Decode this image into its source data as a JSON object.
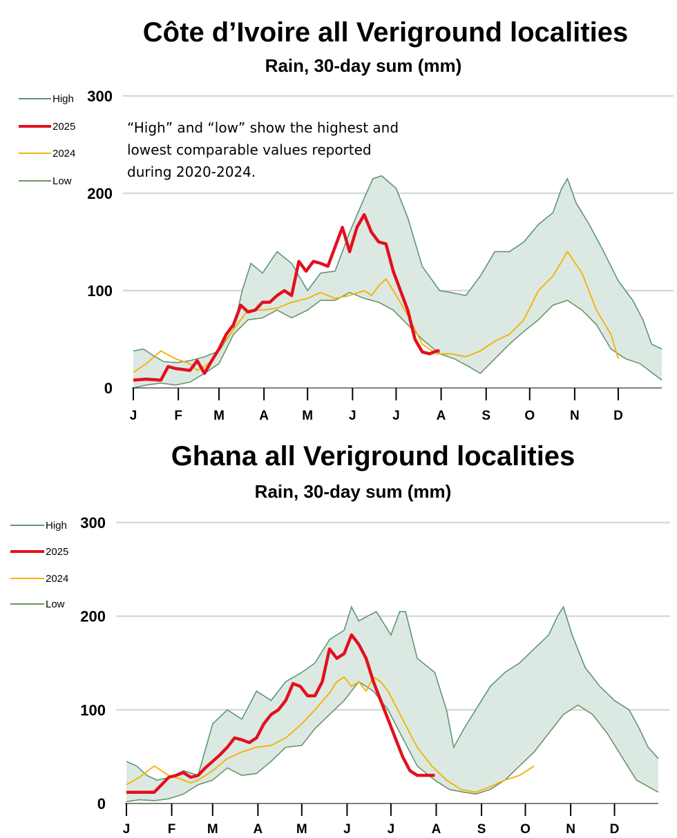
{
  "colors": {
    "band_fill": "#dce9e3",
    "band_line": "#5e9479",
    "low_line": "#6b9363",
    "series_2025": "#e3101d",
    "series_2024": "#f2b40e",
    "grid": "#d9d9d9",
    "axis": "#000000"
  },
  "chart_data": [
    {
      "type": "line",
      "title": "Côte d’Ivoire all Veriground localities",
      "subtitle": "Rain, 30-day sum (mm)",
      "note_lines": [
        "“High” and “low” show the highest and",
        "lowest comparable values reported",
        "during 2020-2024."
      ],
      "legend": [
        "High",
        "2025",
        "2024",
        "Low"
      ],
      "ylim": [
        0,
        300
      ],
      "yticks": [
        "0",
        "100",
        "200",
        "300"
      ],
      "month_labels": [
        "J",
        "F",
        "M",
        "A",
        "M",
        "J",
        "J",
        "A",
        "S",
        "O",
        "N",
        "D"
      ],
      "x_units": "day of year",
      "series": [
        {
          "name": "High",
          "x": [
            1,
            8,
            15,
            22,
            31,
            40,
            50,
            60,
            70,
            76,
            82,
            90,
            100,
            110,
            121,
            130,
            140,
            150,
            160,
            166,
            172,
            182,
            190,
            200,
            212,
            220,
            230,
            240,
            250,
            260,
            270,
            280,
            290,
            296,
            300,
            306,
            315,
            325,
            335,
            345,
            352,
            358,
            365
          ],
          "values": [
            38,
            40,
            33,
            27,
            26,
            28,
            32,
            38,
            60,
            100,
            128,
            118,
            140,
            128,
            100,
            118,
            120,
            160,
            195,
            215,
            218,
            205,
            175,
            125,
            100,
            98,
            95,
            115,
            140,
            140,
            150,
            168,
            180,
            205,
            215,
            190,
            168,
            140,
            110,
            90,
            70,
            45,
            40
          ]
        },
        {
          "name": "Low",
          "x": [
            1,
            10,
            20,
            30,
            40,
            50,
            60,
            70,
            80,
            90,
            100,
            110,
            121,
            130,
            140,
            150,
            160,
            170,
            180,
            190,
            200,
            212,
            222,
            232,
            240,
            250,
            260,
            270,
            280,
            290,
            300,
            310,
            320,
            330,
            340,
            350,
            365
          ],
          "values": [
            0,
            3,
            5,
            3,
            6,
            15,
            25,
            55,
            70,
            72,
            80,
            72,
            80,
            90,
            90,
            98,
            92,
            88,
            80,
            65,
            50,
            35,
            30,
            22,
            15,
            30,
            45,
            58,
            70,
            85,
            90,
            80,
            65,
            40,
            30,
            25,
            8
          ]
        },
        {
          "name": "2025",
          "x": [
            1,
            10,
            20,
            25,
            30,
            40,
            45,
            50,
            55,
            60,
            65,
            70,
            75,
            80,
            85,
            90,
            95,
            100,
            105,
            110,
            115,
            120,
            125,
            130,
            135,
            140,
            145,
            150,
            155,
            160,
            165,
            170,
            175,
            180,
            185,
            190,
            195,
            200,
            205,
            210,
            212
          ],
          "values": [
            8,
            9,
            8,
            22,
            20,
            18,
            28,
            15,
            28,
            40,
            55,
            65,
            85,
            78,
            80,
            88,
            88,
            95,
            100,
            95,
            130,
            120,
            130,
            128,
            125,
            145,
            165,
            140,
            165,
            178,
            160,
            150,
            148,
            120,
            100,
            80,
            50,
            37,
            35,
            38,
            38
          ]
        },
        {
          "name": "2024",
          "x": [
            1,
            10,
            20,
            30,
            40,
            45,
            50,
            55,
            60,
            70,
            80,
            90,
            100,
            110,
            121,
            130,
            140,
            150,
            160,
            165,
            170,
            175,
            180,
            190,
            200,
            210,
            220,
            230,
            240,
            250,
            260,
            270,
            280,
            290,
            300,
            310,
            320,
            330,
            335
          ],
          "values": [
            16,
            25,
            38,
            30,
            25,
            18,
            22,
            28,
            40,
            60,
            80,
            80,
            82,
            88,
            92,
            98,
            92,
            95,
            100,
            95,
            105,
            112,
            100,
            75,
            45,
            35,
            35,
            32,
            38,
            48,
            55,
            70,
            100,
            115,
            140,
            118,
            80,
            55,
            30
          ]
        }
      ]
    },
    {
      "type": "line",
      "title": "Ghana all Veriground localities",
      "subtitle": "Rain, 30-day sum (mm)",
      "legend": [
        "High",
        "2025",
        "2024",
        "Low"
      ],
      "ylim": [
        0,
        300
      ],
      "yticks": [
        "0",
        "100",
        "200",
        "300"
      ],
      "month_labels": [
        "J",
        "F",
        "M",
        "A",
        "M",
        "J",
        "J",
        "A",
        "S",
        "O",
        "N",
        "D"
      ],
      "x_units": "day of year",
      "series": [
        {
          "name": "High",
          "x": [
            1,
            8,
            15,
            22,
            31,
            40,
            50,
            60,
            70,
            80,
            90,
            100,
            110,
            121,
            130,
            140,
            150,
            155,
            160,
            166,
            172,
            182,
            188,
            192,
            200,
            212,
            220,
            225,
            232,
            240,
            250,
            260,
            270,
            280,
            290,
            296,
            300,
            306,
            315,
            325,
            335,
            345,
            352,
            358,
            365
          ],
          "values": [
            45,
            40,
            30,
            25,
            28,
            35,
            30,
            85,
            100,
            90,
            120,
            110,
            130,
            140,
            150,
            175,
            185,
            210,
            195,
            200,
            205,
            180,
            205,
            205,
            155,
            140,
            100,
            60,
            80,
            100,
            125,
            140,
            150,
            165,
            180,
            200,
            210,
            180,
            145,
            125,
            110,
            100,
            80,
            60,
            48
          ]
        },
        {
          "name": "Low",
          "x": [
            1,
            10,
            20,
            30,
            40,
            50,
            60,
            70,
            80,
            90,
            100,
            110,
            121,
            130,
            140,
            150,
            160,
            170,
            180,
            190,
            200,
            212,
            222,
            232,
            240,
            250,
            260,
            270,
            280,
            290,
            300,
            310,
            320,
            330,
            340,
            350,
            365
          ],
          "values": [
            2,
            4,
            3,
            5,
            10,
            20,
            25,
            38,
            30,
            32,
            45,
            60,
            62,
            80,
            95,
            110,
            130,
            120,
            100,
            70,
            40,
            25,
            15,
            12,
            10,
            15,
            25,
            40,
            55,
            75,
            95,
            105,
            95,
            75,
            50,
            25,
            12
          ]
        },
        {
          "name": "2025",
          "x": [
            1,
            10,
            20,
            25,
            30,
            35,
            40,
            45,
            50,
            55,
            60,
            65,
            70,
            75,
            80,
            85,
            90,
            95,
            100,
            105,
            110,
            115,
            120,
            125,
            130,
            135,
            140,
            145,
            150,
            155,
            160,
            165,
            170,
            175,
            180,
            185,
            190,
            195,
            200,
            205,
            210,
            212
          ],
          "values": [
            12,
            12,
            12,
            20,
            28,
            30,
            33,
            28,
            30,
            38,
            45,
            52,
            60,
            70,
            68,
            65,
            70,
            85,
            95,
            100,
            110,
            128,
            125,
            115,
            115,
            130,
            165,
            155,
            160,
            180,
            170,
            155,
            130,
            110,
            90,
            70,
            50,
            35,
            30,
            30,
            30,
            30
          ]
        },
        {
          "name": "2024",
          "x": [
            1,
            10,
            20,
            30,
            40,
            45,
            50,
            60,
            70,
            80,
            90,
            100,
            110,
            121,
            130,
            140,
            145,
            150,
            155,
            160,
            165,
            170,
            175,
            180,
            190,
            200,
            210,
            220,
            230,
            240,
            250,
            260,
            270,
            280
          ],
          "values": [
            20,
            28,
            40,
            30,
            25,
            22,
            25,
            35,
            48,
            55,
            60,
            62,
            70,
            85,
            100,
            118,
            130,
            135,
            125,
            130,
            120,
            135,
            130,
            120,
            90,
            60,
            40,
            25,
            15,
            12,
            18,
            25,
            30,
            40
          ]
        }
      ]
    }
  ]
}
